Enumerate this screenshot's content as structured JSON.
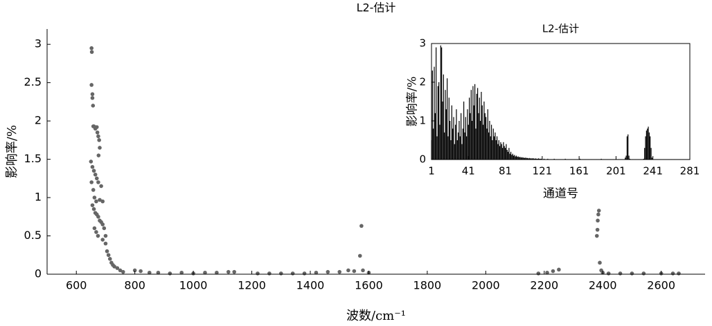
{
  "chart_data": [
    {
      "type": "scatter",
      "title": "L2-估计",
      "xlabel": "波数/cm⁻¹",
      "ylabel": "影响率/%",
      "color": "#666666",
      "xlim": [
        500,
        2750
      ],
      "xticks": [
        600,
        800,
        1000,
        1200,
        1400,
        1600,
        1800,
        2000,
        2200,
        2400,
        2600
      ],
      "ylim": [
        0,
        3.2
      ],
      "yticks": [
        0,
        0.5,
        1,
        1.5,
        2,
        2.5,
        3
      ],
      "box": false,
      "x": [
        652,
        653,
        652,
        655,
        655,
        657,
        658,
        660,
        665,
        670,
        672,
        675,
        678,
        680,
        676,
        650,
        655,
        660,
        665,
        670,
        675,
        685,
        652,
        658,
        662,
        668,
        680,
        690,
        655,
        660,
        665,
        670,
        675,
        680,
        685,
        690,
        695,
        700,
        662,
        668,
        674,
        690,
        700,
        705,
        710,
        715,
        720,
        725,
        730,
        740,
        750,
        760,
        800,
        820,
        850,
        880,
        920,
        960,
        1000,
        1040,
        1080,
        1120,
        1140,
        1220,
        1260,
        1300,
        1340,
        1380,
        1420,
        1460,
        1500,
        1530,
        1550,
        1570,
        1575,
        1580,
        1600,
        2180,
        2210,
        2230,
        2250,
        2380,
        2382,
        2385,
        2387,
        2383,
        2390,
        2395,
        2400,
        2420,
        2460,
        2500,
        2540,
        2600,
        2640,
        2660
      ],
      "values": [
        2.95,
        2.9,
        2.47,
        2.35,
        2.3,
        2.2,
        1.93,
        1.93,
        1.9,
        1.92,
        1.85,
        1.8,
        1.75,
        1.65,
        1.55,
        1.47,
        1.4,
        1.35,
        1.3,
        1.25,
        1.2,
        1.15,
        1.2,
        1.1,
        1.0,
        0.95,
        0.97,
        0.95,
        0.9,
        0.85,
        0.8,
        0.78,
        0.75,
        0.7,
        0.68,
        0.65,
        0.6,
        0.5,
        0.6,
        0.55,
        0.5,
        0.45,
        0.4,
        0.3,
        0.25,
        0.2,
        0.15,
        0.12,
        0.1,
        0.08,
        0.05,
        0.03,
        0.05,
        0.04,
        0.02,
        0.02,
        0.01,
        0.02,
        0.01,
        0.02,
        0.02,
        0.03,
        0.03,
        0.01,
        0.01,
        0.01,
        0.01,
        0.01,
        0.02,
        0.03,
        0.03,
        0.05,
        0.04,
        0.24,
        0.63,
        0.05,
        0.02,
        0.01,
        0.02,
        0.04,
        0.06,
        0.5,
        0.58,
        0.78,
        0.83,
        0.7,
        0.15,
        0.05,
        0.02,
        0.01,
        0.01,
        0.01,
        0.01,
        0.01,
        0.01,
        0.01
      ]
    },
    {
      "type": "bar",
      "title": "L2-估计",
      "xlabel": "通道号",
      "ylabel": "影响率/%",
      "color": "#000000",
      "xlim": [
        1,
        281
      ],
      "xticks": [
        1,
        41,
        81,
        121,
        161,
        201,
        241,
        281
      ],
      "ylim": [
        0,
        3
      ],
      "yticks": [
        0,
        1,
        2,
        3
      ],
      "box": true,
      "values": [
        0.5,
        2.3,
        0.8,
        2.4,
        1.2,
        2.9,
        0.6,
        1.9,
        2.0,
        0.9,
        2.95,
        2.9,
        1.5,
        2.2,
        0.7,
        1.8,
        1.3,
        2.1,
        0.6,
        1.6,
        1.0,
        0.5,
        1.4,
        0.8,
        1.1,
        0.4,
        0.9,
        1.3,
        0.5,
        0.7,
        1.0,
        0.6,
        1.2,
        0.4,
        0.8,
        1.5,
        0.7,
        1.1,
        0.6,
        1.3,
        0.9,
        1.6,
        1.2,
        1.8,
        1.0,
        1.9,
        1.4,
        1.95,
        0.8,
        1.7,
        1.85,
        1.2,
        1.6,
        1.0,
        1.75,
        1.4,
        0.9,
        1.5,
        1.2,
        1.1,
        0.8,
        1.3,
        0.7,
        1.0,
        0.6,
        0.9,
        0.5,
        0.8,
        0.6,
        0.7,
        0.5,
        0.6,
        0.4,
        0.5,
        0.35,
        0.45,
        0.4,
        0.3,
        0.45,
        0.35,
        0.3,
        0.4,
        0.25,
        0.2,
        0.3,
        0.15,
        0.2,
        0.12,
        0.15,
        0.1,
        0.12,
        0.08,
        0.1,
        0.07,
        0.08,
        0.06,
        0.07,
        0.05,
        0.06,
        0.05,
        0.05,
        0.04,
        0.05,
        0.04,
        0.04,
        0.03,
        0.04,
        0.03,
        0.03,
        0.03,
        0.03,
        0.03,
        0.02,
        0.03,
        0.02,
        0.02,
        0.03,
        0.02,
        0.02,
        0.02,
        0.01,
        0.01,
        0.02,
        0.01,
        0.01,
        0.01,
        0.02,
        0.01,
        0.01,
        0.01,
        0.01,
        0.01,
        0.01,
        0.02,
        0.01,
        0.01,
        0.01,
        0.01,
        0.01,
        0.01,
        0.01,
        0.01,
        0.01,
        0.01,
        0.01,
        0.02,
        0.01,
        0.01,
        0.01,
        0.01,
        0.01,
        0.01,
        0.01,
        0.01,
        0.01,
        0.01,
        0.01,
        0.01,
        0.01,
        0.01,
        0.01,
        0.02,
        0.01,
        0.01,
        0.01,
        0.01,
        0.01,
        0.01,
        0.01,
        0.01,
        0.01,
        0.01,
        0.01,
        0.01,
        0.01,
        0.01,
        0.01,
        0.01,
        0.01,
        0.01,
        0.01,
        0.01,
        0.01,
        0.01,
        0.02,
        0.01,
        0.01,
        0.01,
        0.01,
        0.01,
        0.01,
        0.01,
        0.01,
        0.01,
        0.01,
        0.01,
        0.01,
        0.01,
        0.01,
        0.01,
        0.01,
        0.01,
        0.01,
        0.01,
        0.01,
        0.01,
        0.01,
        0.01,
        0.01,
        0.01,
        0.05,
        0.1,
        0.6,
        0.65,
        0.1,
        0.02,
        0.01,
        0.01,
        0.01,
        0.01,
        0.01,
        0.01,
        0.01,
        0.01,
        0.01,
        0.01,
        0.01,
        0.01,
        0.01,
        0.01,
        0.02,
        0.3,
        0.6,
        0.75,
        0.8,
        0.85,
        0.7,
        0.6,
        0.3,
        0.05,
        0.01,
        0.01,
        0.01,
        0.01,
        0.01,
        0.01,
        0.01,
        0.01,
        0.01,
        0.01,
        0.01,
        0.01,
        0.01,
        0.01,
        0.01,
        0.01,
        0.01,
        0.01,
        0.01,
        0.01,
        0.01,
        0.01,
        0.01,
        0.01,
        0.01,
        0.01,
        0.01,
        0.01,
        0.01,
        0.01,
        0.01,
        0.01,
        0.01,
        0.01,
        0.01,
        0.01,
        0.01,
        0.01,
        0.01,
        0.01,
        0.01
      ]
    }
  ]
}
